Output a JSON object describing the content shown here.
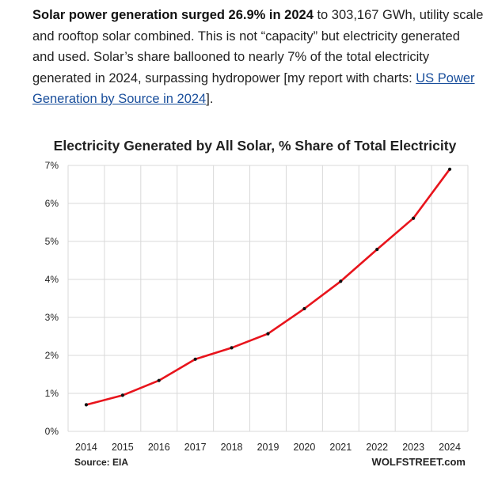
{
  "article": {
    "bold_lead": "Solar power generation surged 26.9% in 2024",
    "text_1": " to 303,167 GWh, utility scale and rooftop solar combined. This is not “capacity” but electricity generated and used. Solar’s share ballooned to nearly 7% of the total electricity generated in 2024, surpassing hydropower [my report with charts: ",
    "link_text": "US Power Generation by Source in 2024",
    "text_2": "]."
  },
  "chart_data": {
    "type": "line",
    "title": "Electricity Generated by All Solar, % Share of Total Electricity",
    "xlabel": "",
    "ylabel": "",
    "categories": [
      "2014",
      "2015",
      "2016",
      "2017",
      "2018",
      "2019",
      "2020",
      "2021",
      "2022",
      "2023",
      "2024"
    ],
    "series": [
      {
        "values": [
          0.7,
          0.95,
          1.34,
          1.9,
          2.2,
          2.57,
          3.23,
          3.95,
          4.79,
          5.61,
          6.9
        ]
      }
    ],
    "ylim": [
      0,
      7
    ],
    "y_ticks": [
      "0%",
      "1%",
      "2%",
      "3%",
      "4%",
      "5%",
      "6%",
      "7%"
    ],
    "grid": true,
    "line_color": "#e8141c",
    "source": "Source: EIA",
    "watermark": "WOLFSTREET.com"
  }
}
